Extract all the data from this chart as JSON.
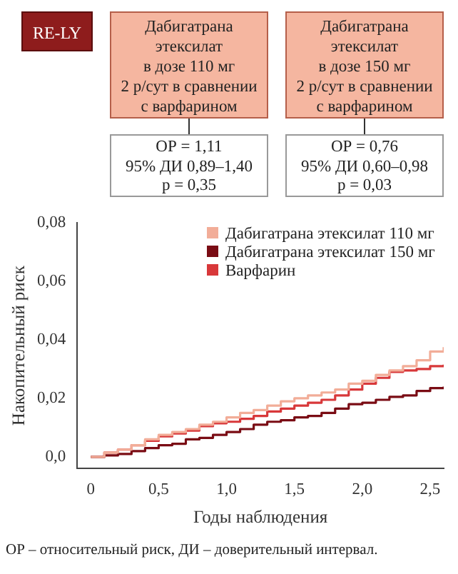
{
  "chart_data": {
    "type": "step",
    "annotations": [
      "RE-LY",
      "Дабигатрана\nэтексилат\nв дозе 110 мг\n2 р/сут в сравнении\nс варфарином",
      "Дабигатрана\nэтексилат\nв дозе 150 мг\n2 р/сут в сравнении\nс варфарином",
      "ОР = 1,11\n95% ДИ 0,89–1,40\np = 0,35",
      "ОР = 0,76\n95% ДИ 0,60–0,98\np = 0,03",
      "ОР – относительный риск, ДИ – доверительный интервал."
    ],
    "xlabel": "Годы наблюдения",
    "ylabel": "Накопительный риск",
    "x": [
      0,
      0.1,
      0.2,
      0.3,
      0.4,
      0.5,
      0.6,
      0.7,
      0.8,
      0.9,
      1.0,
      1.1,
      1.2,
      1.3,
      1.4,
      1.5,
      1.6,
      1.7,
      1.8,
      1.9,
      2.0,
      2.1,
      2.2,
      2.3,
      2.4,
      2.5,
      2.6
    ],
    "series": [
      {
        "name": "Дабигатрана этексилат 110 мг",
        "color": "#f2ad98",
        "values": [
          0,
          0.0015,
          0.0025,
          0.004,
          0.006,
          0.0075,
          0.0085,
          0.0095,
          0.011,
          0.012,
          0.0135,
          0.015,
          0.016,
          0.0175,
          0.019,
          0.02,
          0.021,
          0.022,
          0.023,
          0.025,
          0.026,
          0.028,
          0.0295,
          0.031,
          0.033,
          0.036,
          0.0375
        ]
      },
      {
        "name": "Дабигатрана этексилат 150 мг",
        "color": "#7a0c14",
        "values": [
          0,
          0.0005,
          0.001,
          0.002,
          0.003,
          0.004,
          0.0045,
          0.006,
          0.0065,
          0.0075,
          0.0085,
          0.0095,
          0.011,
          0.012,
          0.0125,
          0.0135,
          0.014,
          0.015,
          0.0165,
          0.018,
          0.0185,
          0.0195,
          0.0205,
          0.021,
          0.0225,
          0.0235,
          0.024
        ]
      },
      {
        "name": "Варфарин",
        "color": "#d8383a",
        "values": [
          0,
          0.0015,
          0.0025,
          0.004,
          0.0055,
          0.007,
          0.008,
          0.009,
          0.0105,
          0.0115,
          0.012,
          0.013,
          0.014,
          0.0155,
          0.0165,
          0.0175,
          0.0185,
          0.0195,
          0.021,
          0.023,
          0.025,
          0.027,
          0.029,
          0.0295,
          0.03,
          0.031,
          0.0315
        ]
      }
    ],
    "xlim": [
      -0.1,
      2.6
    ],
    "xticks": [
      0,
      {
        "value": 0.5,
        "label": "0,5"
      },
      {
        "value": 1,
        "label": "1,0"
      },
      {
        "value": 1.5,
        "label": "1,5"
      },
      {
        "value": 2,
        "label": "2,0"
      },
      {
        "value": 2.5,
        "label": "2,5"
      }
    ],
    "ylim": [
      -0.004,
      0.08
    ],
    "yticks": [
      {
        "value": 0,
        "label": "0,0"
      },
      {
        "value": 0.02,
        "label": "0,02"
      },
      {
        "value": 0.04,
        "label": "0,04"
      },
      {
        "value": 0.06,
        "label": "0,06"
      },
      {
        "value": 0.08,
        "label": "0,08"
      }
    ],
    "grid": false,
    "legend": "top right"
  }
}
